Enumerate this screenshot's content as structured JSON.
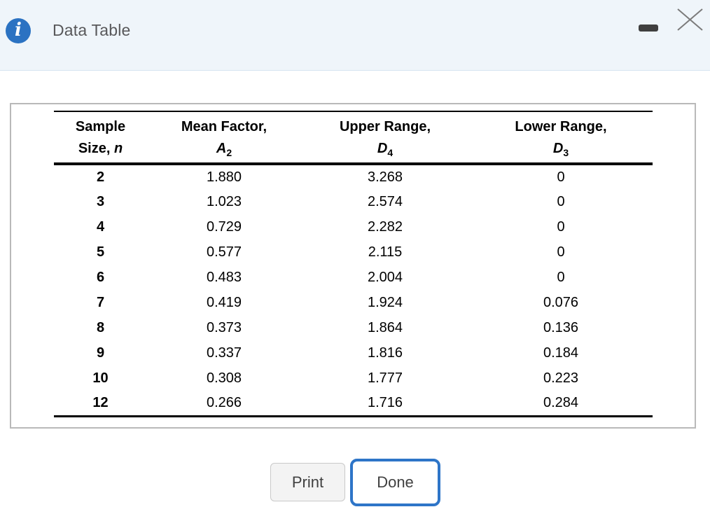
{
  "dialog": {
    "title": "Data Table",
    "info_icon_glyph": "i"
  },
  "window_controls": {
    "minimize_name": "minimize",
    "close_name": "close"
  },
  "table": {
    "columns": [
      {
        "line1": "Sample",
        "prefix": "Size, ",
        "variable": "n",
        "subscript": ""
      },
      {
        "line1": "Mean Factor,",
        "prefix": "",
        "variable": "A",
        "subscript": "2"
      },
      {
        "line1": "Upper Range,",
        "prefix": "",
        "variable": "D",
        "subscript": "4"
      },
      {
        "line1": "Lower Range,",
        "prefix": "",
        "variable": "D",
        "subscript": "3"
      }
    ],
    "rows": [
      [
        "2",
        "1.880",
        "3.268",
        "0"
      ],
      [
        "3",
        "1.023",
        "2.574",
        "0"
      ],
      [
        "4",
        "0.729",
        "2.282",
        "0"
      ],
      [
        "5",
        "0.577",
        "2.115",
        "0"
      ],
      [
        "6",
        "0.483",
        "2.004",
        "0"
      ],
      [
        "7",
        "0.419",
        "1.924",
        "0.076"
      ],
      [
        "8",
        "0.373",
        "1.864",
        "0.136"
      ],
      [
        "9",
        "0.337",
        "1.816",
        "0.184"
      ],
      [
        "10",
        "0.308",
        "1.777",
        "0.223"
      ],
      [
        "12",
        "0.266",
        "1.716",
        "0.284"
      ]
    ]
  },
  "buttons": {
    "print_label": "Print",
    "done_label": "Done"
  },
  "colors": {
    "header_background": "#eff5fa",
    "header_border": "#d5e3f1",
    "info_icon_blue": "#2b72c2",
    "done_border_blue": "#2e75c8",
    "panel_border_gray": "#b9b9b9",
    "title_text": "#58585a",
    "button_text": "#404040"
  }
}
